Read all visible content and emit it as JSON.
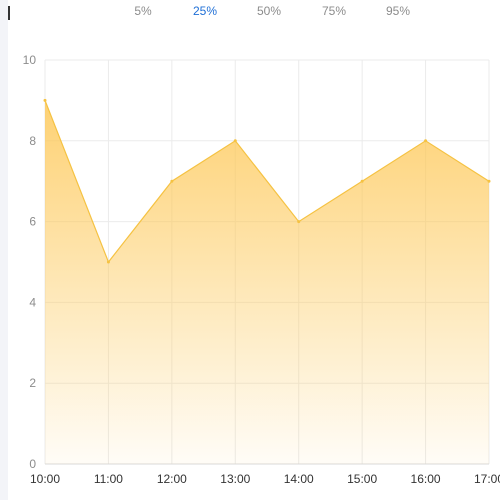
{
  "percent_tabs": {
    "items": [
      {
        "label": "5%",
        "active": false
      },
      {
        "label": "25%",
        "active": true
      },
      {
        "label": "50%",
        "active": false
      },
      {
        "label": "75%",
        "active": false
      },
      {
        "label": "95%",
        "active": false
      }
    ],
    "active_color": "#1f6fd6",
    "inactive_color": "#8c8c8c"
  },
  "chart_data": {
    "type": "area",
    "title": "",
    "xlabel": "",
    "ylabel": "",
    "categories": [
      "10:00",
      "11:00",
      "12:00",
      "13:00",
      "14:00",
      "15:00",
      "16:00",
      "17:00"
    ],
    "series": [
      {
        "values": [
          9,
          5,
          7,
          8,
          6,
          7,
          8,
          7
        ],
        "color": "#f5c242"
      }
    ],
    "ylim": [
      0,
      10
    ],
    "yticks": [
      0,
      2,
      4,
      6,
      8,
      10
    ],
    "grid": true
  }
}
